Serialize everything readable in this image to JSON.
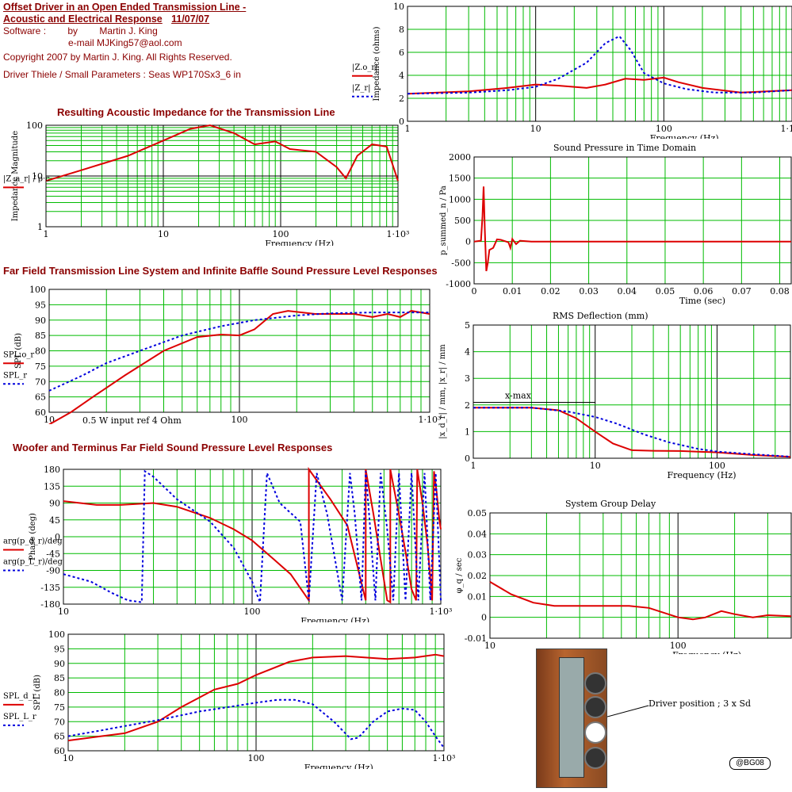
{
  "header": {
    "title1": "Offset Driver in an Open Ended Transmission Line -",
    "title2": "Acoustic and Electrical Response",
    "date": "11/07/07",
    "software": "Software :",
    "by": "by",
    "author": "Martin J. King",
    "email": "e-mail  MJKing57@aol.com",
    "copyright": "Copyright 2007 by Martin J. King. All Rights Reserved.",
    "driver": "Driver Thiele / Small Parameters : Seas WP170Sx3_6 in"
  },
  "sections": {
    "acoustic": "Resulting Acoustic Impedance for the Transmission Line",
    "farfield": "Far Field Transmission Line System and Infinite Baffle Sound Pressure Level Responses",
    "woofer": "Woofer and Terminus Far Field Sound Pressure Level Responses"
  },
  "notes": {
    "input": "0.5 W input  ref 4 Ohm",
    "xmax": "x-max",
    "driver_position": "Driver position ;  3 x Sd",
    "badge": "@BG08"
  },
  "chart_data": [
    {
      "id": "impedance",
      "type": "line",
      "ylabel": "Impedance (ohms)",
      "xlabel": "Frequency (Hz)",
      "xscale": "log",
      "xlim": [
        1,
        1000
      ],
      "ylim": [
        0,
        10
      ],
      "xticks": [
        "1",
        "10",
        "100",
        "1·10³"
      ],
      "yticks": [
        "0",
        "2",
        "4",
        "6",
        "8",
        "10"
      ],
      "legend": [
        "|Z.o_r|",
        "|Z_r|"
      ],
      "series": [
        {
          "style": "red",
          "x": [
            1,
            3,
            6,
            10,
            15,
            25,
            35,
            50,
            70,
            100,
            130,
            200,
            400,
            1000
          ],
          "y": [
            2.4,
            2.6,
            2.9,
            3.2,
            3.1,
            2.9,
            3.2,
            3.7,
            3.6,
            3.8,
            3.4,
            2.9,
            2.5,
            2.7
          ]
        },
        {
          "style": "blue",
          "x": [
            1,
            3,
            6,
            10,
            15,
            25,
            35,
            45,
            55,
            70,
            100,
            150,
            250,
            500,
            1000
          ],
          "y": [
            2.4,
            2.5,
            2.7,
            3.0,
            3.7,
            5.1,
            6.8,
            7.4,
            6.2,
            4.2,
            3.3,
            2.8,
            2.5,
            2.5,
            2.7
          ]
        }
      ]
    },
    {
      "id": "acoustic_impedance",
      "type": "line",
      "ylabel": "Impedance Magnitude",
      "xlabel": "Frequency (Hz)",
      "xscale": "log",
      "yscale": "log",
      "xlim": [
        1,
        1000
      ],
      "ylim": [
        1,
        100
      ],
      "xticks": [
        "1",
        "10",
        "100",
        "1·10³"
      ],
      "yticks": [
        "1",
        "10",
        "100"
      ],
      "legend": [
        "|Z_a_r| / ρ·c"
      ],
      "series": [
        {
          "style": "red",
          "x": [
            1,
            2,
            5,
            10,
            17,
            25,
            40,
            60,
            90,
            120,
            200,
            300,
            360,
            450,
            600,
            800,
            1000
          ],
          "y": [
            8,
            13,
            25,
            50,
            85,
            100,
            70,
            42,
            48,
            34,
            30,
            15,
            9,
            25,
            42,
            38,
            8
          ]
        }
      ]
    },
    {
      "id": "pressure_time",
      "type": "line",
      "title": "Sound Pressure in Time Domain",
      "ylabel": "p_summed_n / Pa",
      "xlabel": "Time (sec)",
      "xlim": [
        0,
        0.083
      ],
      "ylim": [
        -1000,
        2000
      ],
      "xticks": [
        "0",
        "0.01",
        "0.02",
        "0.03",
        "0.04",
        "0.05",
        "0.06",
        "0.07",
        "0.08"
      ],
      "yticks": [
        "-1000",
        "-500",
        "0",
        "500",
        "1000",
        "1500",
        "2000"
      ],
      "series": [
        {
          "style": "red",
          "x": [
            0,
            0.0018,
            0.0022,
            0.0025,
            0.0028,
            0.0032,
            0.0036,
            0.004,
            0.005,
            0.006,
            0.007,
            0.008,
            0.009,
            0.0095,
            0.01,
            0.011,
            0.012,
            0.015,
            0.083
          ],
          "y": [
            0,
            20,
            600,
            1300,
            300,
            -700,
            -500,
            -200,
            -150,
            50,
            40,
            10,
            -20,
            -150,
            60,
            -60,
            20,
            0,
            0
          ]
        }
      ]
    },
    {
      "id": "spl_far",
      "type": "line",
      "ylabel": "SPL (dB)",
      "xlabel": "Frequency (Hz)",
      "xscale": "log",
      "xlim": [
        10,
        1000
      ],
      "ylim": [
        60,
        100
      ],
      "xticks": [
        "10",
        "100",
        "1·10³"
      ],
      "yticks": [
        "60",
        "65",
        "70",
        "75",
        "80",
        "85",
        "90",
        "95",
        "100"
      ],
      "legend": [
        "SPL.o_r",
        "SPL_r"
      ],
      "series": [
        {
          "style": "red",
          "x": [
            10,
            13,
            17,
            25,
            40,
            60,
            80,
            100,
            120,
            150,
            180,
            250,
            400,
            500,
            600,
            700,
            800,
            1000
          ],
          "y": [
            56,
            60,
            65,
            72,
            80,
            84.5,
            85.3,
            85,
            87,
            92,
            93,
            92,
            92,
            91,
            92,
            91,
            93,
            92
          ]
        },
        {
          "style": "blue",
          "x": [
            10,
            15,
            20,
            30,
            50,
            80,
            120,
            200,
            300,
            500,
            1000
          ],
          "y": [
            67,
            72,
            76,
            80,
            85,
            88,
            90,
            91.5,
            92.2,
            92.5,
            92.5
          ]
        }
      ]
    },
    {
      "id": "rms_deflection",
      "type": "line",
      "title": "RMS Deflection (mm)",
      "ylabel": "|x_d_r| / mm, |x_r| / mm",
      "xlabel": "Frequency (Hz)",
      "xscale": "log",
      "xlim": [
        1,
        400
      ],
      "ylim": [
        0,
        5
      ],
      "xticks": [
        "1",
        "10",
        "100"
      ],
      "yticks": [
        "0",
        "1",
        "2",
        "3",
        "4",
        "5"
      ],
      "hline": {
        "label": "x-max",
        "y": 2.1
      },
      "series": [
        {
          "style": "red",
          "x": [
            1,
            3,
            5,
            7,
            10,
            14,
            20,
            30,
            50,
            100,
            200,
            400
          ],
          "y": [
            1.9,
            1.9,
            1.8,
            1.5,
            1.0,
            0.55,
            0.3,
            0.28,
            0.27,
            0.22,
            0.12,
            0.05
          ]
        },
        {
          "style": "blue",
          "x": [
            1,
            3,
            6,
            10,
            15,
            25,
            40,
            70,
            100,
            200,
            400
          ],
          "y": [
            1.9,
            1.9,
            1.75,
            1.55,
            1.3,
            0.9,
            0.6,
            0.35,
            0.25,
            0.15,
            0.06
          ]
        }
      ]
    },
    {
      "id": "phase",
      "type": "line",
      "ylabel": "Phase (deg)",
      "xlabel": "Frequency (Hz)",
      "xscale": "log",
      "xlim": [
        10,
        1000
      ],
      "ylim": [
        -180,
        180
      ],
      "xticks": [
        "10",
        "100",
        "1·10³"
      ],
      "yticks": [
        "-180",
        "-135",
        "-90",
        "-45",
        "0",
        "45",
        "90",
        "135",
        "180"
      ],
      "legend": [
        "arg(p_d_r)/deg",
        "arg(p_L_r)/deg"
      ],
      "series": [
        {
          "style": "red",
          "x": [
            10,
            15,
            20,
            30,
            40,
            60,
            80,
            100,
            130,
            160,
            200,
            200,
            260,
            320,
            400,
            400,
            440,
            480,
            520,
            540,
            540,
            600,
            650,
            700,
            740,
            750,
            800,
            850,
            900,
            920,
            950,
            980,
            1000
          ],
          "y": [
            95,
            85,
            85,
            90,
            80,
            50,
            20,
            -10,
            -60,
            -100,
            -170,
            180,
            100,
            30,
            -170,
            180,
            60,
            -60,
            -170,
            -175,
            180,
            60,
            -40,
            -140,
            -170,
            180,
            90,
            -20,
            -170,
            175,
            120,
            50,
            20
          ]
        },
        {
          "style": "blue",
          "x": [
            10,
            14,
            18,
            22,
            26,
            27,
            30,
            40,
            60,
            80,
            100,
            110,
            120,
            140,
            180,
            200,
            220,
            250,
            300,
            330,
            350,
            380,
            400,
            420,
            450,
            480,
            520,
            560,
            600,
            650,
            700,
            760,
            820,
            880,
            940,
            1000
          ],
          "y": [
            -100,
            -120,
            -150,
            -170,
            -175,
            175,
            160,
            100,
            40,
            -30,
            -120,
            -175,
            170,
            90,
            40,
            -170,
            170,
            60,
            -170,
            170,
            60,
            -170,
            175,
            40,
            -170,
            170,
            20,
            -170,
            170,
            -170,
            170,
            -170,
            170,
            -170,
            170,
            -170
          ]
        }
      ]
    },
    {
      "id": "group_delay",
      "type": "line",
      "title": "System Group Delay",
      "ylabel": "φ_q / sec",
      "xlabel": "Frequency (Hz)",
      "xscale": "log",
      "xlim": [
        10,
        400
      ],
      "ylim": [
        -0.01,
        0.05
      ],
      "xticks": [
        "10",
        "100"
      ],
      "yticks": [
        "-0.01",
        "0",
        "0.01",
        "0.02",
        "0.03",
        "0.04",
        "0.05"
      ],
      "series": [
        {
          "style": "red",
          "x": [
            10,
            13,
            17,
            22,
            30,
            40,
            55,
            70,
            100,
            120,
            140,
            170,
            200,
            250,
            300,
            400
          ],
          "y": [
            0.017,
            0.011,
            0.007,
            0.0055,
            0.0055,
            0.0055,
            0.0055,
            0.0045,
            0,
            -0.001,
            0,
            0.003,
            0.0015,
            0,
            0.001,
            0.0005
          ]
        }
      ]
    },
    {
      "id": "spl_woofer",
      "type": "line",
      "ylabel": "SPL (dB)",
      "xlabel": "Frequency (Hz)",
      "xscale": "log",
      "xlim": [
        10,
        1000
      ],
      "ylim": [
        60,
        100
      ],
      "xticks": [
        "10",
        "100",
        "1·10³"
      ],
      "yticks": [
        "60",
        "65",
        "70",
        "75",
        "80",
        "85",
        "90",
        "95",
        "100"
      ],
      "legend": [
        "SPL_d_r",
        "SPL_L_r"
      ],
      "series": [
        {
          "style": "red",
          "x": [
            10,
            15,
            20,
            30,
            40,
            60,
            80,
            100,
            150,
            200,
            300,
            500,
            700,
            900,
            1000
          ],
          "y": [
            63.5,
            65,
            66,
            70,
            75,
            81,
            83,
            86,
            90.5,
            92,
            92.5,
            91.5,
            92,
            93,
            92.5
          ]
        },
        {
          "style": "blue",
          "x": [
            10,
            15,
            20,
            30,
            50,
            80,
            100,
            130,
            160,
            200,
            260,
            320,
            350,
            420,
            500,
            600,
            700,
            800,
            900,
            1000
          ],
          "y": [
            65,
            67,
            68.5,
            70.5,
            73.5,
            75.5,
            76.5,
            77.5,
            77.5,
            76,
            70,
            64,
            64.5,
            70,
            73.5,
            74.5,
            74,
            70,
            65,
            61
          ]
        }
      ]
    }
  ]
}
